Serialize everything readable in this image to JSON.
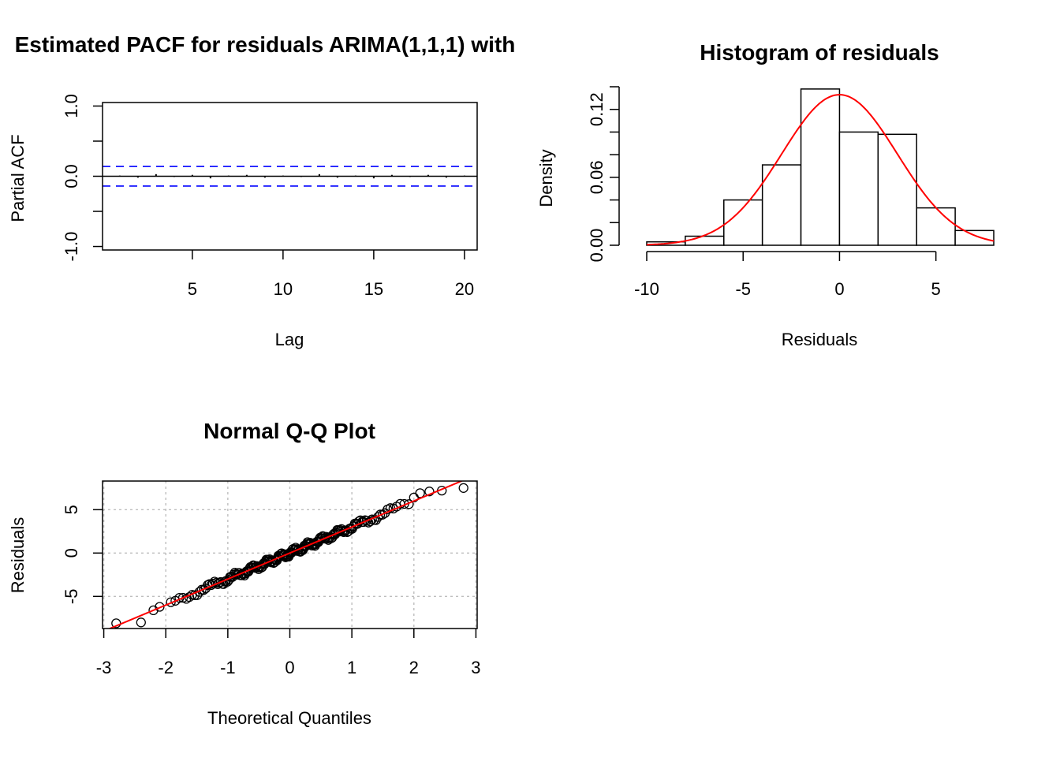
{
  "colors": {
    "reference_line": "#0000ff",
    "normal_curve": "#ff0000",
    "qq_line": "#ff0000",
    "grid": "#bebebe"
  },
  "chart_data": [
    {
      "type": "bar",
      "title": "Estimated PACF for residuals ARIMA(1,1,1) with",
      "xlabel": "Lag",
      "ylabel": "Partial ACF",
      "xlim": [
        0.05,
        20.7
      ],
      "ylim": [
        -1.05,
        1.05
      ],
      "xticks": [
        "5",
        "10",
        "15",
        "20"
      ],
      "yticks": [
        "-1.0",
        "0.0",
        "1.0"
      ],
      "x": [
        1,
        2,
        3,
        4,
        5,
        6,
        7,
        8,
        9,
        10,
        11,
        12,
        13,
        14,
        15,
        16,
        17,
        18,
        19,
        20
      ],
      "values": [
        0.01,
        -0.02,
        0.03,
        -0.01,
        0.02,
        -0.03,
        0.01,
        0.02,
        -0.02,
        0.01,
        -0.01,
        0.03,
        -0.02,
        0.01,
        -0.03,
        0.02,
        -0.01,
        0.02,
        -0.02,
        0.01
      ],
      "confidence_bounds": [
        0.14,
        -0.14
      ]
    },
    {
      "type": "bar",
      "title": "Histogram of residuals",
      "xlabel": "Residuals",
      "ylabel": "Density",
      "xlim": [
        -10,
        8
      ],
      "ylim": [
        0,
        0.14
      ],
      "xticks": [
        "-10",
        "-5",
        "0",
        "5"
      ],
      "yticks": [
        "0.00",
        "0.06",
        "0.12"
      ],
      "bins": [
        [
          -10,
          -8
        ],
        [
          -8,
          -6
        ],
        [
          -6,
          -4
        ],
        [
          -4,
          -2
        ],
        [
          -2,
          0
        ],
        [
          0,
          2
        ],
        [
          2,
          4
        ],
        [
          4,
          6
        ],
        [
          6,
          8
        ]
      ],
      "values": [
        0.003,
        0.008,
        0.04,
        0.071,
        0.138,
        0.1,
        0.098,
        0.033,
        0.013
      ],
      "normal_curve": {
        "mean": 0,
        "sd": 3
      }
    },
    {
      "type": "scatter",
      "title": "Normal Q-Q Plot",
      "xlabel": "Theoretical Quantiles",
      "ylabel": "Residuals",
      "xlim": [
        -3,
        3
      ],
      "ylim": [
        -8.7,
        8.3
      ],
      "xticks": [
        "-3",
        "-2",
        "-1",
        "0",
        "1",
        "2",
        "3"
      ],
      "yticks": [
        "-5",
        "0",
        "5"
      ],
      "grid": true,
      "n_points": 200,
      "qq_line": {
        "intercept": 0,
        "slope": 3
      },
      "extreme_points": [
        [
          -2.8,
          -8.1
        ],
        [
          -2.4,
          -8.0
        ],
        [
          -2.2,
          -6.6
        ],
        [
          -2.1,
          -6.2
        ],
        [
          2.0,
          6.4
        ],
        [
          2.1,
          6.9
        ],
        [
          2.25,
          7.1
        ],
        [
          2.45,
          7.2
        ],
        [
          2.8,
          7.5
        ]
      ]
    }
  ]
}
